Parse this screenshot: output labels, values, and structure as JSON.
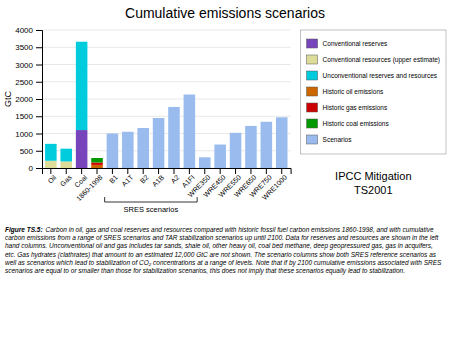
{
  "chart_data": {
    "type": "bar",
    "stacked": true,
    "title": "Cumulative emissions scenarios",
    "ylabel": "GtC",
    "categories": [
      "Oil",
      "Gas",
      "Coal",
      "1860-1998",
      "B1",
      "A1T",
      "B2",
      "A1B",
      "A2",
      "A1FI",
      "WRE350",
      "WRE450",
      "WRE550",
      "WRE650",
      "WRE750",
      "WRE1000"
    ],
    "series": [
      {
        "name": "Conventional reserves",
        "color": "#7744bb",
        "values": [
          0,
          0,
          1100,
          0,
          0,
          0,
          0,
          0,
          0,
          0,
          0,
          0,
          0,
          0,
          0,
          0
        ]
      },
      {
        "name": "Conventional resources (upper estimate)",
        "color": "#dddd99",
        "values": [
          210,
          190,
          0,
          0,
          0,
          0,
          0,
          0,
          0,
          0,
          0,
          0,
          0,
          0,
          0,
          0
        ]
      },
      {
        "name": "Unconventional reserves and resources",
        "color": "#00ccdd",
        "values": [
          490,
          370,
          2560,
          0,
          0,
          0,
          0,
          0,
          0,
          0,
          0,
          0,
          0,
          0,
          0,
          0
        ]
      },
      {
        "name": "Historic oil emissions",
        "color": "#cc6600",
        "values": [
          0,
          0,
          0,
          90,
          0,
          0,
          0,
          0,
          0,
          0,
          0,
          0,
          0,
          0,
          0,
          0
        ]
      },
      {
        "name": "Historic gas emissions",
        "color": "#cc0000",
        "values": [
          0,
          0,
          0,
          70,
          0,
          0,
          0,
          0,
          0,
          0,
          0,
          0,
          0,
          0,
          0,
          0
        ]
      },
      {
        "name": "Historic coal emissions",
        "color": "#009900",
        "values": [
          0,
          0,
          0,
          130,
          0,
          0,
          0,
          0,
          0,
          0,
          0,
          0,
          0,
          0,
          0,
          0
        ]
      },
      {
        "name": "Scenarios",
        "color": "#99bbee",
        "values": [
          0,
          0,
          0,
          0,
          1000,
          1050,
          1160,
          1450,
          1770,
          2130,
          310,
          680,
          1020,
          1220,
          1340,
          1470
        ]
      }
    ],
    "ylim": [
      0,
      4000
    ],
    "yticks": [
      0,
      500,
      1000,
      1500,
      2000,
      2500,
      3000,
      3500,
      4000
    ],
    "grid": true,
    "legend": "right",
    "annotations": [
      {
        "text": "SRES scenarios",
        "from": "B1",
        "to": "A1FI"
      },
      {
        "text": "IPCC Mitigation\nTS2001"
      }
    ],
    "caption_label": "Figure TS.5:",
    "caption": " Carbon in oil, gas and coal reserves and resources compared with historic fossil fuel carbon emissions 1860-1998, and with cumulative carbon emissions from a range of SRES scenarios and TAR stabilization scenarios up until 2100. Data for reserves and resources are shown in the left hand columns. Unconventional oil and gas includes tar sands, shale oil, other heavy oil, coal bed methane, deep geopressured gas, gas in acquifers, etc. Gas hydrates (clathrates) that amount to an estimated 12,000 GtC are not shown. The scenario columns show both SRES reference scenarios as well as scenarios which lead to stabilization of CO₂ concentrations at a range of levels. Note that if by 2100 cumulative emissions associated with SRES scenarios are equal to or smaller than those for stabilization scenarios, this does not imply that these scenarios equally lead to stabilization."
  }
}
